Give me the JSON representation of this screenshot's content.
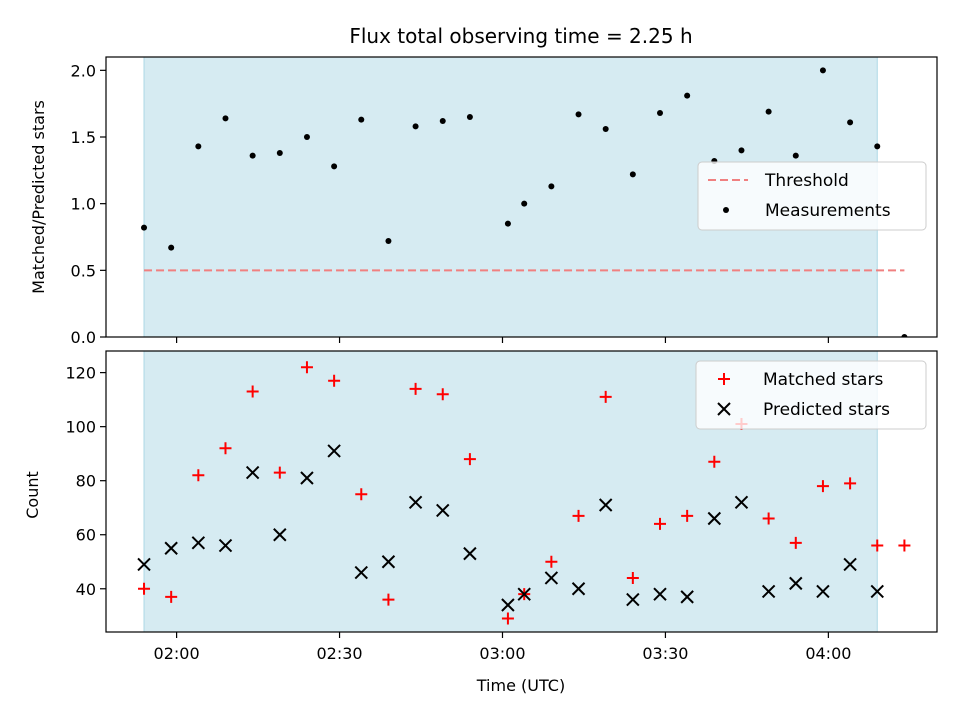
{
  "chart_data": [
    {
      "type": "scatter",
      "title": "Flux total observing time = 2.25 h",
      "xlabel": "",
      "ylabel": "Matched/Predicted stars",
      "ylim": [
        0,
        2.1
      ],
      "yticks": [
        0.0,
        0.5,
        1.0,
        1.5,
        2.0
      ],
      "ytick_labels": [
        "0.0",
        "0.5",
        "1.0",
        "1.5",
        "2.0"
      ],
      "xlim": [
        "01:47",
        "04:20"
      ],
      "xticks": [
        "02:00",
        "02:30",
        "03:00",
        "03:30",
        "04:00"
      ],
      "shaded_span": [
        "01:54",
        "04:09"
      ],
      "shade_color": "#add8e6",
      "legend_position": "center-right",
      "series": [
        {
          "name": "Threshold",
          "kind": "hline",
          "color": "#f08080",
          "y": 0.5,
          "x_range": [
            "01:54",
            "04:14"
          ]
        },
        {
          "name": "Measurements",
          "kind": "dot",
          "color": "#000000",
          "points": [
            [
              "01:54",
              0.82
            ],
            [
              "01:59",
              0.67
            ],
            [
              "02:04",
              1.43
            ],
            [
              "02:09",
              1.64
            ],
            [
              "02:14",
              1.36
            ],
            [
              "02:19",
              1.38
            ],
            [
              "02:24",
              1.5
            ],
            [
              "02:29",
              1.28
            ],
            [
              "02:34",
              1.63
            ],
            [
              "02:39",
              0.72
            ],
            [
              "02:44",
              1.58
            ],
            [
              "02:49",
              1.62
            ],
            [
              "02:54",
              1.65
            ],
            [
              "03:01",
              0.85
            ],
            [
              "03:04",
              1.0
            ],
            [
              "03:09",
              1.13
            ],
            [
              "03:14",
              1.67
            ],
            [
              "03:19",
              1.56
            ],
            [
              "03:24",
              1.22
            ],
            [
              "03:29",
              1.68
            ],
            [
              "03:34",
              1.81
            ],
            [
              "03:39",
              1.32
            ],
            [
              "03:44",
              1.4
            ],
            [
              "03:49",
              1.69
            ],
            [
              "03:54",
              1.36
            ],
            [
              "03:59",
              2.0
            ],
            [
              "04:04",
              1.61
            ],
            [
              "04:09",
              1.43
            ],
            [
              "04:14",
              0.0
            ]
          ]
        }
      ]
    },
    {
      "type": "scatter",
      "title": "",
      "xlabel": "Time (UTC)",
      "ylabel": "Count",
      "ylim": [
        24,
        128
      ],
      "yticks": [
        40,
        60,
        80,
        100,
        120
      ],
      "ytick_labels": [
        "40",
        "60",
        "80",
        "100",
        "120"
      ],
      "xlim": [
        "01:47",
        "04:20"
      ],
      "xticks": [
        "02:00",
        "02:30",
        "03:00",
        "03:30",
        "04:00"
      ],
      "xtick_labels": [
        "02:00",
        "02:30",
        "03:00",
        "03:30",
        "04:00"
      ],
      "shaded_span": [
        "01:54",
        "04:09"
      ],
      "shade_color": "#add8e6",
      "legend_position": "top-right",
      "series": [
        {
          "name": "Matched stars",
          "kind": "plus",
          "color": "#ff0000",
          "points": [
            [
              "01:54",
              40
            ],
            [
              "01:59",
              37
            ],
            [
              "02:04",
              82
            ],
            [
              "02:09",
              92
            ],
            [
              "02:14",
              113
            ],
            [
              "02:19",
              83
            ],
            [
              "02:24",
              122
            ],
            [
              "02:29",
              117
            ],
            [
              "02:34",
              75
            ],
            [
              "02:39",
              36
            ],
            [
              "02:44",
              114
            ],
            [
              "02:49",
              112
            ],
            [
              "02:54",
              88
            ],
            [
              "03:01",
              29
            ],
            [
              "03:04",
              38
            ],
            [
              "03:09",
              50
            ],
            [
              "03:14",
              67
            ],
            [
              "03:19",
              111
            ],
            [
              "03:24",
              44
            ],
            [
              "03:29",
              64
            ],
            [
              "03:34",
              67
            ],
            [
              "03:39",
              87
            ],
            [
              "03:44",
              101
            ],
            [
              "03:49",
              66
            ],
            [
              "03:54",
              57
            ],
            [
              "03:59",
              78
            ],
            [
              "04:04",
              79
            ],
            [
              "04:09",
              56
            ],
            [
              "04:14",
              56
            ]
          ]
        },
        {
          "name": "Predicted stars",
          "kind": "x",
          "color": "#000000",
          "points": [
            [
              "01:54",
              49
            ],
            [
              "01:59",
              55
            ],
            [
              "02:04",
              57
            ],
            [
              "02:09",
              56
            ],
            [
              "02:14",
              83
            ],
            [
              "02:19",
              60
            ],
            [
              "02:24",
              81
            ],
            [
              "02:29",
              91
            ],
            [
              "02:34",
              46
            ],
            [
              "02:39",
              50
            ],
            [
              "02:44",
              72
            ],
            [
              "02:49",
              69
            ],
            [
              "02:54",
              53
            ],
            [
              "03:01",
              34
            ],
            [
              "03:04",
              38
            ],
            [
              "03:09",
              44
            ],
            [
              "03:14",
              40
            ],
            [
              "03:19",
              71
            ],
            [
              "03:24",
              36
            ],
            [
              "03:29",
              38
            ],
            [
              "03:34",
              37
            ],
            [
              "03:39",
              66
            ],
            [
              "03:44",
              72
            ],
            [
              "03:49",
              39
            ],
            [
              "03:54",
              42
            ],
            [
              "03:59",
              39
            ],
            [
              "04:04",
              49
            ],
            [
              "04:09",
              39
            ]
          ]
        }
      ]
    }
  ]
}
